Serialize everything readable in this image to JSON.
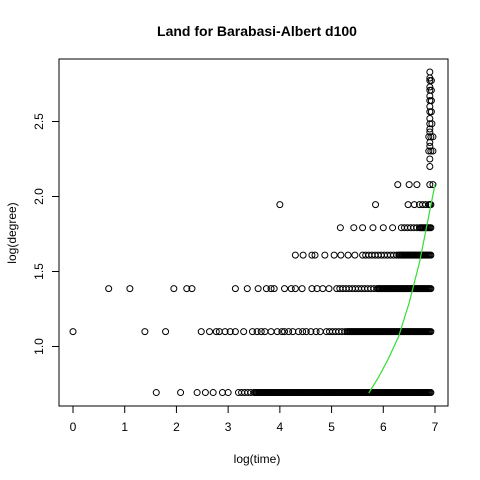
{
  "chart_data": {
    "type": "scatter",
    "title": "Land for Barabasi-Albert d100",
    "xlabel": "log(time)",
    "ylabel": "log(degree)",
    "xlim": [
      0,
      7
    ],
    "ylim": [
      0.69,
      2.83
    ],
    "x_ticks": [
      "0",
      "1",
      "2",
      "3",
      "4",
      "5",
      "6",
      "7"
    ],
    "y_ticks": [
      "1.0",
      "1.5",
      "2.0",
      "2.5"
    ],
    "grid": false,
    "legend": "none",
    "point_color": "#000000",
    "fit_color": "#33dd33",
    "rows": [
      {
        "y": 0.693,
        "x_start": 3.2,
        "x_dense_from": 3.5,
        "x_sparse": [
          1.61,
          2.08,
          2.4,
          2.56,
          2.71,
          2.89,
          3.0
        ]
      },
      {
        "y": 1.099,
        "x_start": 4.9,
        "x_dense_from": 5.3,
        "x_sparse": [
          0.0,
          1.39,
          1.79,
          2.48,
          2.64,
          2.77,
          2.83,
          2.94,
          3.04,
          3.14,
          3.3,
          3.47,
          3.56,
          3.64,
          3.71,
          3.83,
          3.95,
          4.04,
          4.09,
          4.17,
          4.25,
          4.36,
          4.44,
          4.51,
          4.6,
          4.7,
          4.78
        ]
      },
      {
        "y": 1.386,
        "x_start": 5.1,
        "x_dense_from": 5.9,
        "x_sparse": [
          0.69,
          1.1,
          1.95,
          2.2,
          2.3,
          3.14,
          3.37,
          3.58,
          3.74,
          3.83,
          3.89,
          4.09,
          4.22,
          4.3,
          4.43,
          4.62,
          4.72,
          4.83,
          4.95
        ]
      },
      {
        "y": 1.609,
        "x_start": 5.6,
        "x_dense_from": 6.3,
        "x_sparse": [
          4.3,
          4.45,
          4.62,
          4.68,
          4.87,
          5.05,
          5.18,
          5.32,
          5.45
        ]
      },
      {
        "y": 1.792,
        "x_start": 6.35,
        "x_dense_from": 6.7,
        "x_sparse": [
          5.17,
          5.43,
          5.6,
          5.8,
          6.0,
          6.18
        ]
      },
      {
        "y": 1.946,
        "x_start": 6.7,
        "x_dense_from": 6.9,
        "x_sparse": [
          4.0,
          5.85,
          6.48,
          6.6
        ]
      },
      {
        "y": 2.079,
        "x_start": 6.9,
        "x_dense_from": 7.0,
        "x_sparse": [
          6.28,
          6.5,
          6.65
        ]
      }
    ],
    "top_points": {
      "x": [
        6.88,
        6.92,
        6.96,
        6.88,
        6.92,
        6.96,
        6.9,
        6.94,
        6.9,
        6.93,
        6.9,
        6.93,
        6.9,
        6.93,
        6.9,
        6.93,
        6.9,
        6.9,
        6.9,
        6.9,
        6.9,
        6.9,
        6.9,
        6.9,
        6.9,
        6.9,
        6.9,
        6.9
      ],
      "y": [
        2.303,
        2.303,
        2.303,
        2.398,
        2.398,
        2.398,
        2.485,
        2.485,
        2.565,
        2.565,
        2.639,
        2.639,
        2.708,
        2.708,
        2.773,
        2.773,
        2.83,
        2.335,
        2.36,
        2.43,
        2.45,
        2.52,
        2.6,
        2.67,
        2.73,
        2.79,
        2.2,
        2.25
      ]
    },
    "fit": {
      "x": [
        5.72,
        5.9,
        6.1,
        6.3,
        6.5,
        6.7,
        7.0
      ],
      "y": [
        0.69,
        0.79,
        0.92,
        1.07,
        1.29,
        1.56,
        2.08
      ]
    }
  }
}
